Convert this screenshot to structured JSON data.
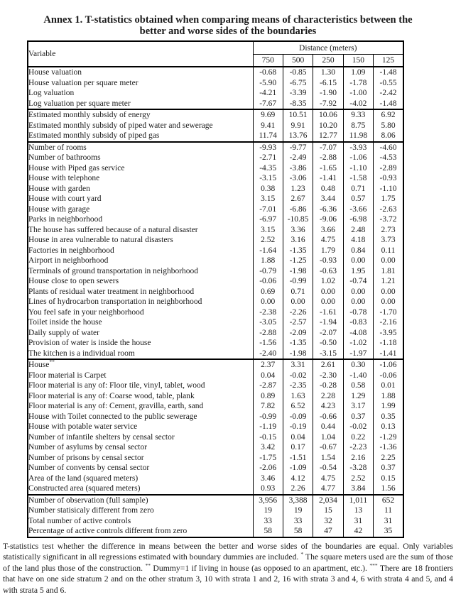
{
  "title": {
    "line1": "Annex 1. T-statistics obtained when comparing means of characteristics between the",
    "line2": "better and worse sides of the boundaries"
  },
  "table": {
    "variable_header": "Variable",
    "distance_header": "Distance (meters)",
    "columns": [
      "750",
      "500",
      "250",
      "150",
      "125"
    ],
    "groups": [
      [
        {
          "label": "House valuation",
          "values": [
            "-0.68",
            "-0.85",
            "1.30",
            "1.09",
            "-1.48"
          ]
        },
        {
          "label": "House valuation per square meter",
          "values": [
            "-5.90",
            "-6.75",
            "-6.15",
            "-1.78",
            "-0.55"
          ]
        },
        {
          "label": "Log valuation",
          "values": [
            "-4.21",
            "-3.39",
            "-1.90",
            "-1.00",
            "-2.42"
          ]
        },
        {
          "label": "Log valuation per square meter",
          "values": [
            "-7.67",
            "-8.35",
            "-7.92",
            "-4.02",
            "-1.48"
          ]
        }
      ],
      [
        {
          "label": "Estimated monthly subsidy of energy",
          "values": [
            "9.69",
            "10.51",
            "10.06",
            "9.33",
            "6.92"
          ]
        },
        {
          "label": "Estimated monthly subsidy of piped water and sewerage",
          "values": [
            "9.41",
            "9.91",
            "10.20",
            "8.75",
            "5.80"
          ]
        },
        {
          "label": "Estimated monthly subsidy of piped gas",
          "values": [
            "11.74",
            "13.76",
            "12.77",
            "11.98",
            "8.06"
          ]
        }
      ],
      [
        {
          "label": "Number of rooms",
          "values": [
            "-9.93",
            "-9.77",
            "-7.07",
            "-3.93",
            "-4.60"
          ]
        },
        {
          "label": "Number of bathrooms",
          "values": [
            "-2.71",
            "-2.49",
            "-2.88",
            "-1.06",
            "-4.53"
          ]
        },
        {
          "label": "House with Piped gas service",
          "values": [
            "-4.35",
            "-3.86",
            "-1.65",
            "-1.10",
            "-2.89"
          ]
        },
        {
          "label": "House with telephone",
          "values": [
            "-3.15",
            "-3.06",
            "-1.41",
            "-1.58",
            "-0.93"
          ]
        },
        {
          "label": "House with garden",
          "values": [
            "0.38",
            "1.23",
            "0.48",
            "0.71",
            "-1.10"
          ]
        },
        {
          "label": "House with court yard",
          "values": [
            "3.15",
            "2.67",
            "3.44",
            "0.57",
            "1.75"
          ]
        },
        {
          "label": "House with garage",
          "values": [
            "-7.01",
            "-6.86",
            "-6.36",
            "-3.66",
            "-2.63"
          ]
        },
        {
          "label": "Parks in neighborhood",
          "values": [
            "-6.97",
            "-10.85",
            "-9.06",
            "-6.98",
            "-3.72"
          ]
        },
        {
          "label": "The house has suffered because of a natural disaster",
          "values": [
            "3.15",
            "3.36",
            "3.66",
            "2.48",
            "2.73"
          ]
        },
        {
          "label": "House in area vulnerable to natural disasters",
          "values": [
            "2.52",
            "3.16",
            "4.75",
            "4.18",
            "3.73"
          ]
        },
        {
          "label": "Factories in neighborhood",
          "values": [
            "-1.64",
            "-1.35",
            "1.79",
            "0.84",
            "0.11"
          ]
        },
        {
          "label": "Airport in neighborhood",
          "values": [
            "1.88",
            "-1.25",
            "-0.93",
            "0.00",
            "0.00"
          ]
        },
        {
          "label": "Terminals of ground transportation in neighborhood",
          "values": [
            "-0.79",
            "-1.98",
            "-0.63",
            "1.95",
            "1.81"
          ]
        },
        {
          "label": "House close to open sewers",
          "values": [
            "-0.06",
            "-0.99",
            "1.02",
            "-0.74",
            "1.21"
          ]
        },
        {
          "label": "Plants of residual water treatment in neighborhood",
          "values": [
            "0.69",
            "0.71",
            "0.00",
            "0.00",
            "0.00"
          ]
        },
        {
          "label": "Lines of hydrocarbon transportation in neighborhood",
          "values": [
            "0.00",
            "0.00",
            "0.00",
            "0.00",
            "0.00"
          ]
        },
        {
          "label": "You feel safe in your neighborhood",
          "values": [
            "-2.38",
            "-2.26",
            "-1.61",
            "-0.78",
            "-1.70"
          ]
        },
        {
          "label": "Toilet inside the house",
          "values": [
            "-3.05",
            "-2.57",
            "-1.94",
            "-0.83",
            "-2.16"
          ]
        },
        {
          "label": "Daily supply of water",
          "values": [
            "-2.88",
            "-2.09",
            "-2.07",
            "-4.08",
            "-3.95"
          ]
        },
        {
          "label": "Provision of water is inside the house",
          "values": [
            "-1.56",
            "-1.35",
            "-0.50",
            "-1.02",
            "-1.18"
          ]
        },
        {
          "label": "The kitchen is a individual room",
          "values": [
            "-2.40",
            "-1.98",
            "-3.15",
            "-1.97",
            "-1.41"
          ]
        }
      ],
      [
        {
          "label": "House",
          "sup": "**",
          "values": [
            "2.37",
            "3.31",
            "2.61",
            "0.30",
            "-1.06"
          ]
        },
        {
          "label": "Floor material is Carpet",
          "values": [
            "0.04",
            "-0.02",
            "-2.30",
            "-1.40",
            "-0.06"
          ]
        },
        {
          "label": "Floor material is any of: Floor tile, vinyl, tablet, wood",
          "values": [
            "-2.87",
            "-2.35",
            "-0.28",
            "0.58",
            "0.01"
          ]
        },
        {
          "label": "Floor material is any of: Coarse wood, table, plank",
          "values": [
            "0.89",
            "1.63",
            "2.28",
            "1.29",
            "1.88"
          ]
        },
        {
          "label": "Floor material is any of: Cement, gravilla, earth, sand",
          "values": [
            "7.82",
            "6.52",
            "4.23",
            "3.17",
            "1.99"
          ]
        },
        {
          "label": "House with Toilet connected to the public sewerage",
          "values": [
            "-0.99",
            "-0.09",
            "-0.66",
            "0.37",
            "0.35"
          ]
        },
        {
          "label": "House with potable water service",
          "values": [
            "-1.19",
            "-0.19",
            "0.44",
            "-0.02",
            "0.13"
          ]
        },
        {
          "label": "Number of infantile shelters by censal sector",
          "values": [
            "-0.15",
            "0.04",
            "1.04",
            "0.22",
            "-1.29"
          ]
        },
        {
          "label": "Number of asylums  by censal sector",
          "values": [
            "3.42",
            "0.17",
            "-0.67",
            "-2.23",
            "-1.36"
          ]
        },
        {
          "label": "Number of prisons by censal sector",
          "values": [
            "-1.75",
            "-1.51",
            "1.54",
            "2.16",
            "2.25"
          ]
        },
        {
          "label": "Number of convents  by censal sector",
          "values": [
            "-2.06",
            "-1.09",
            "-0.54",
            "-3.28",
            "0.37"
          ]
        },
        {
          "label": "Area of the land (squared meters)",
          "values": [
            "3.46",
            "4.12",
            "4.75",
            "2.52",
            "0.15"
          ]
        },
        {
          "label": "Constructed area (squared meters)",
          "values": [
            "0.93",
            "2.26",
            "4.77",
            "3.84",
            "1.56"
          ]
        }
      ],
      [
        {
          "label": "Number of observation (full sample)",
          "values": [
            "3,956",
            "3,388",
            "2,034",
            "1,011",
            "652"
          ]
        },
        {
          "label": "Number statisicaly different from zero",
          "values": [
            "19",
            "19",
            "15",
            "13",
            "11"
          ]
        },
        {
          "label": "Total number of active controls",
          "values": [
            "33",
            "33",
            "32",
            "31",
            "31"
          ]
        },
        {
          "label": "Percentage of active controls different from zero",
          "values": [
            "58",
            "58",
            "47",
            "42",
            "35"
          ]
        }
      ]
    ]
  },
  "footnote": {
    "segments": [
      {
        "text": "T-statistics test whether the difference in means between the better and worse sides of the boundaries are equal. Only variables statistically significant in all regressions estimated with boundary dummies are included. "
      },
      {
        "sup": "*"
      },
      {
        "text": " The square meters used are the sum of those of the land plus those of the construction. "
      },
      {
        "sup": "**"
      },
      {
        "text": " Dummy=1 if living in house (as opposed to an apartment, etc.). "
      },
      {
        "sup": "***"
      },
      {
        "text": " There are 18 frontiers that have on one side stratum 2 and on the other stratum 3, 10 with strata 1 and 2, 16 with strata 3 and 4, 6 with strata 4 and 5, and 4 with strata 5 and 6."
      }
    ]
  }
}
